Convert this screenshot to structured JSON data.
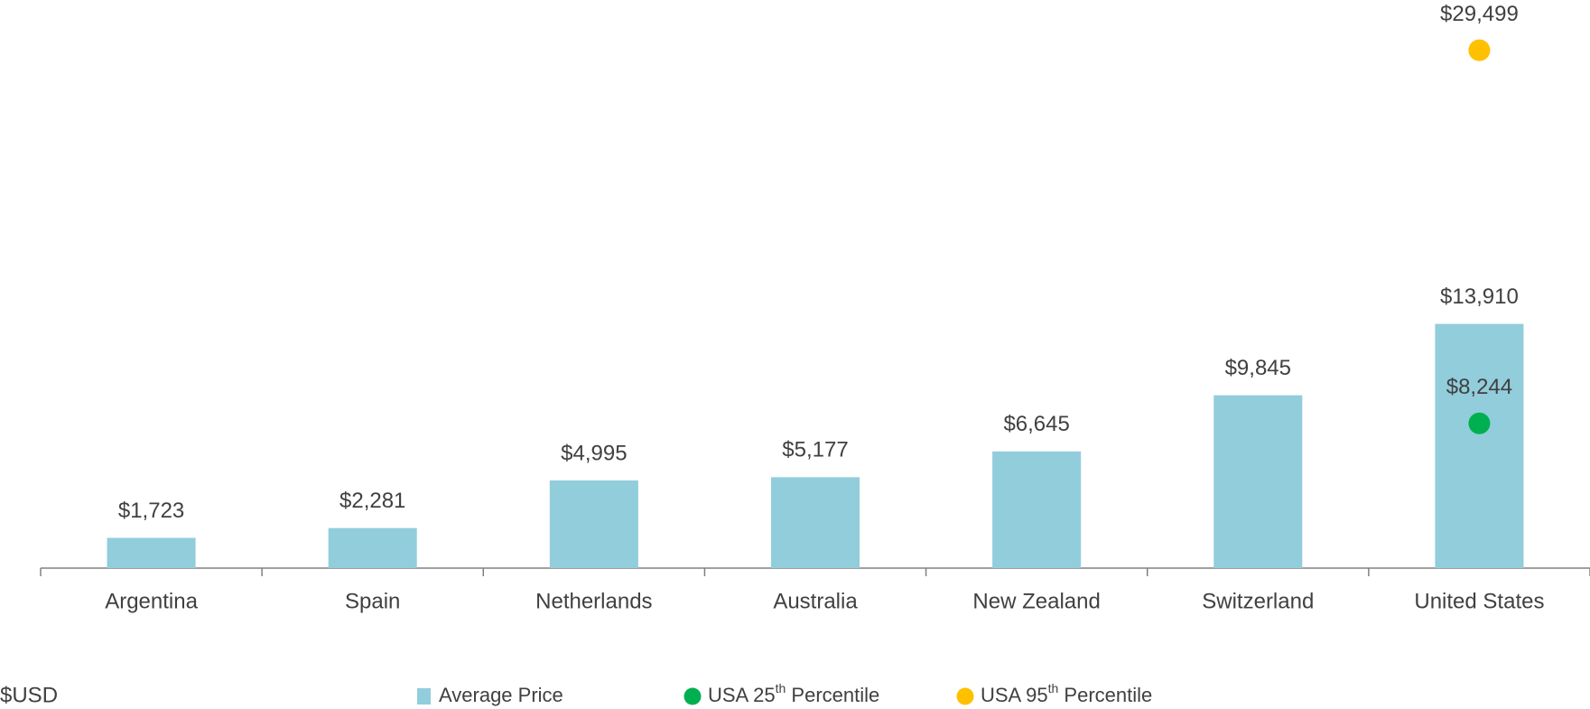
{
  "chart_data": {
    "type": "bar",
    "categories": [
      "Argentina",
      "Spain",
      "Netherlands",
      "Australia",
      "New Zealand",
      "Switzerland",
      "United States"
    ],
    "series": [
      {
        "name": "Average Price",
        "type": "bar",
        "color": "#92cddc",
        "values": [
          1723,
          2281,
          4995,
          5177,
          6645,
          9845,
          13910
        ],
        "value_labels": [
          "$1,723",
          "$2,281",
          "$4,995",
          "$5,177",
          "$6,645",
          "$9,845",
          "$13,910"
        ]
      },
      {
        "name": "USA 25th Percentile",
        "type": "scatter",
        "color": "#00b050",
        "values": [
          null,
          null,
          null,
          null,
          null,
          null,
          8244
        ],
        "value_labels": [
          null,
          null,
          null,
          null,
          null,
          null,
          "$8,244"
        ]
      },
      {
        "name": "USA 95th Percentile",
        "type": "scatter",
        "color": "#ffc000",
        "values": [
          null,
          null,
          null,
          null,
          null,
          null,
          29499
        ],
        "value_labels": [
          null,
          null,
          null,
          null,
          null,
          null,
          "$29,499"
        ]
      }
    ],
    "y_label": "$USD",
    "ylim": [
      0,
      32000
    ],
    "legend": "bottom"
  }
}
